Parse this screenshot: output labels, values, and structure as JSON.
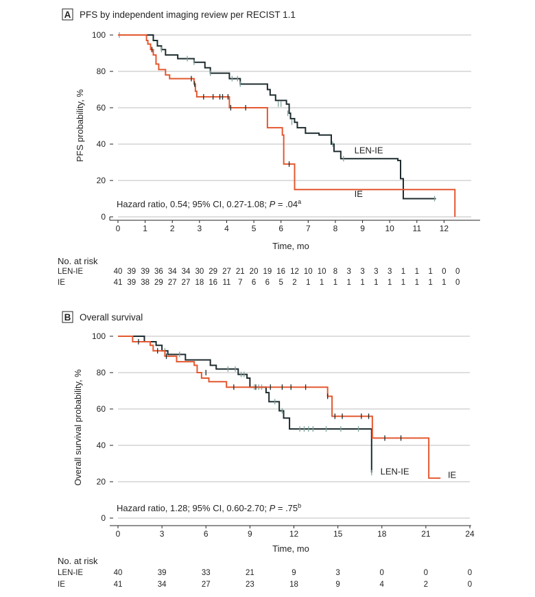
{
  "chart_data": [
    {
      "type": "line",
      "subtype": "kaplan-meier",
      "panel_label": "A",
      "title": "PFS by independent imaging review per RECIST 1.1",
      "xlabel": "Time, mo",
      "ylabel": "PFS probability, %",
      "xlim": [
        0,
        13
      ],
      "ylim": [
        0,
        100
      ],
      "x_ticks": [
        0,
        1,
        2,
        3,
        4,
        5,
        6,
        7,
        8,
        9,
        10,
        11,
        12
      ],
      "y_ticks": [
        0,
        20,
        40,
        60,
        80,
        100
      ],
      "grid": "horizontal",
      "annotation": {
        "text": "Hazard ratio, 0.54; 95% CI, 0.27-1.08; ",
        "p_label": "P",
        "p_text": " = .04",
        "superscript": "a"
      },
      "series": [
        {
          "name": "LEN-IE",
          "color": "#1d2b2e",
          "steps": [
            [
              0,
              100
            ],
            [
              1.3,
              97
            ],
            [
              1.45,
              94
            ],
            [
              1.6,
              92
            ],
            [
              1.75,
              89
            ],
            [
              2.2,
              87
            ],
            [
              2.7,
              87
            ],
            [
              2.8,
              85
            ],
            [
              3.2,
              82
            ],
            [
              3.4,
              79
            ],
            [
              4.1,
              76
            ],
            [
              4.5,
              73
            ],
            [
              5.5,
              70
            ],
            [
              5.6,
              67
            ],
            [
              5.8,
              64
            ],
            [
              6.2,
              62
            ],
            [
              6.3,
              57
            ],
            [
              6.35,
              54
            ],
            [
              6.5,
              52
            ],
            [
              6.6,
              49
            ],
            [
              6.9,
              46
            ],
            [
              7.4,
              45
            ],
            [
              7.85,
              40
            ],
            [
              7.95,
              36
            ],
            [
              8.2,
              32
            ],
            [
              10.3,
              31
            ],
            [
              10.4,
              21
            ],
            [
              10.5,
              10
            ],
            [
              11.7,
              10
            ]
          ],
          "censors": [
            [
              0.05,
              100
            ],
            [
              1.6,
              92
            ],
            [
              2.55,
              87
            ],
            [
              2.8,
              85
            ],
            [
              3.4,
              79
            ],
            [
              4.2,
              76
            ],
            [
              4.4,
              76
            ],
            [
              4.5,
              73
            ],
            [
              5.9,
              62
            ],
            [
              6.0,
              62
            ],
            [
              6.25,
              57
            ],
            [
              6.4,
              52
            ],
            [
              7.9,
              40
            ],
            [
              8.3,
              32
            ],
            [
              11.65,
              10
            ]
          ],
          "label": "LEN-IE",
          "label_at": [
            8.7,
            35
          ]
        },
        {
          "name": "IE",
          "color": "#e4572e",
          "steps": [
            [
              0,
              100
            ],
            [
              1.05,
              97
            ],
            [
              1.1,
              95
            ],
            [
              1.2,
              92
            ],
            [
              1.3,
              89
            ],
            [
              1.4,
              84
            ],
            [
              1.5,
              81
            ],
            [
              1.75,
              78
            ],
            [
              1.9,
              76
            ],
            [
              2.8,
              73
            ],
            [
              2.85,
              69
            ],
            [
              2.9,
              66
            ],
            [
              4.1,
              60
            ],
            [
              5.5,
              49
            ],
            [
              6.05,
              45
            ],
            [
              6.1,
              29
            ],
            [
              6.5,
              15
            ],
            [
              12.4,
              15
            ],
            [
              12.4,
              0
            ]
          ],
          "censors": [
            [
              1.25,
              92
            ],
            [
              2.7,
              76
            ],
            [
              2.82,
              73
            ],
            [
              3.15,
              66
            ],
            [
              3.5,
              66
            ],
            [
              3.75,
              66
            ],
            [
              3.85,
              66
            ],
            [
              4.05,
              66
            ],
            [
              4.15,
              60
            ],
            [
              4.7,
              60
            ],
            [
              6.3,
              29
            ]
          ],
          "label": "IE",
          "label_at": [
            8.7,
            11
          ]
        }
      ],
      "risk_table": {
        "title": "No. at risk",
        "times": [
          0,
          0.5,
          1,
          1.5,
          2,
          2.5,
          3,
          3.5,
          4,
          4.5,
          5,
          5.5,
          6,
          6.5,
          7,
          7.5,
          8,
          8.5,
          9,
          9.5,
          10,
          10.5,
          11,
          11.5,
          12,
          12.5
        ],
        "rows": [
          {
            "label": "LEN-IE",
            "values": [
              "40",
              "39",
              "39",
              "36",
              "34",
              "34",
              "30",
              "29",
              "27",
              "21",
              "20",
              "19",
              "16",
              "12",
              "10",
              "10",
              "8",
              "3",
              "3",
              "3",
              "3",
              "1",
              "1",
              "1",
              "0",
              "0"
            ]
          },
          {
            "label": "IE",
            "values": [
              "41",
              "39",
              "38",
              "29",
              "27",
              "27",
              "18",
              "16",
              "11",
              "7",
              "6",
              "6",
              "5",
              "2",
              "1",
              "1",
              "1",
              "1",
              "1",
              "1",
              "1",
              "1",
              "1",
              "1",
              "1",
              "0"
            ]
          }
        ]
      }
    },
    {
      "type": "line",
      "subtype": "kaplan-meier",
      "panel_label": "B",
      "title": "Overall survival",
      "xlabel": "Time, mo",
      "ylabel": "Overall survival probability, %",
      "xlim": [
        0,
        24
      ],
      "ylim": [
        0,
        100
      ],
      "x_ticks": [
        0,
        3,
        6,
        9,
        12,
        15,
        18,
        21,
        24
      ],
      "y_ticks": [
        0,
        20,
        40,
        60,
        80,
        100
      ],
      "grid": "horizontal",
      "annotation": {
        "text": "Hazard ratio, 1.28; 95% CI, 0.60-2.70; ",
        "p_label": "P",
        "p_text": " = .75",
        "superscript": "b"
      },
      "series": [
        {
          "name": "LEN-IE",
          "color": "#1d2b2e",
          "steps": [
            [
              0,
              100
            ],
            [
              1.8,
              97
            ],
            [
              2.6,
              95
            ],
            [
              3.0,
              92
            ],
            [
              3.4,
              90
            ],
            [
              4.6,
              87
            ],
            [
              6.3,
              84
            ],
            [
              6.7,
              82
            ],
            [
              8.2,
              79
            ],
            [
              8.8,
              77
            ],
            [
              9.0,
              72
            ],
            [
              10.1,
              69
            ],
            [
              10.3,
              64
            ],
            [
              11.0,
              59
            ],
            [
              11.3,
              55
            ],
            [
              11.7,
              49
            ],
            [
              17.3,
              49
            ],
            [
              17.3,
              25
            ]
          ],
          "censors": [
            [
              3.2,
              92
            ],
            [
              4.2,
              90
            ],
            [
              7.5,
              82
            ],
            [
              8.0,
              82
            ],
            [
              8.4,
              79
            ],
            [
              8.6,
              79
            ],
            [
              9.3,
              72
            ],
            [
              9.6,
              72
            ],
            [
              9.8,
              72
            ],
            [
              10.7,
              64
            ],
            [
              11.2,
              59
            ],
            [
              12.4,
              49
            ],
            [
              12.7,
              49
            ],
            [
              13.0,
              49
            ],
            [
              13.3,
              49
            ],
            [
              14.2,
              49
            ],
            [
              15.2,
              49
            ],
            [
              16.4,
              49
            ],
            [
              17.3,
              25
            ]
          ],
          "label": "LEN-IE",
          "label_at": [
            17.9,
            24
          ]
        },
        {
          "name": "IE",
          "color": "#e4572e",
          "steps": [
            [
              0,
              100
            ],
            [
              1.0,
              97
            ],
            [
              2.2,
              95
            ],
            [
              2.4,
              92
            ],
            [
              3.2,
              89
            ],
            [
              4.0,
              86
            ],
            [
              5.2,
              84
            ],
            [
              5.4,
              80
            ],
            [
              5.7,
              77
            ],
            [
              6.2,
              75
            ],
            [
              7.4,
              72
            ],
            [
              14.1,
              72
            ],
            [
              14.3,
              67
            ],
            [
              14.6,
              56
            ],
            [
              17.3,
              56
            ],
            [
              17.35,
              44
            ],
            [
              21.2,
              44
            ],
            [
              21.2,
              22
            ],
            [
              22.0,
              22
            ]
          ],
          "censors": [
            [
              1.4,
              97
            ],
            [
              2.7,
              92
            ],
            [
              3.3,
              89
            ],
            [
              6.0,
              80
            ],
            [
              7.9,
              72
            ],
            [
              9.4,
              72
            ],
            [
              10.4,
              72
            ],
            [
              11.2,
              72
            ],
            [
              11.8,
              72
            ],
            [
              12.8,
              72
            ],
            [
              14.3,
              67
            ],
            [
              14.8,
              56
            ],
            [
              15.3,
              56
            ],
            [
              16.6,
              56
            ],
            [
              17.1,
              56
            ],
            [
              18.2,
              44
            ],
            [
              19.3,
              44
            ]
          ],
          "label": "IE",
          "label_at": [
            22.5,
            22
          ]
        }
      ],
      "risk_table": {
        "title": "No. at risk",
        "times": [
          0,
          3,
          6,
          9,
          12,
          15,
          18,
          21,
          24
        ],
        "rows": [
          {
            "label": "LEN-IE",
            "values": [
              "40",
              "39",
              "33",
              "21",
              "9",
              "3",
              "0",
              "0",
              "0"
            ]
          },
          {
            "label": "IE",
            "values": [
              "41",
              "34",
              "27",
              "23",
              "18",
              "9",
              "4",
              "2",
              "0"
            ]
          }
        ]
      }
    }
  ]
}
